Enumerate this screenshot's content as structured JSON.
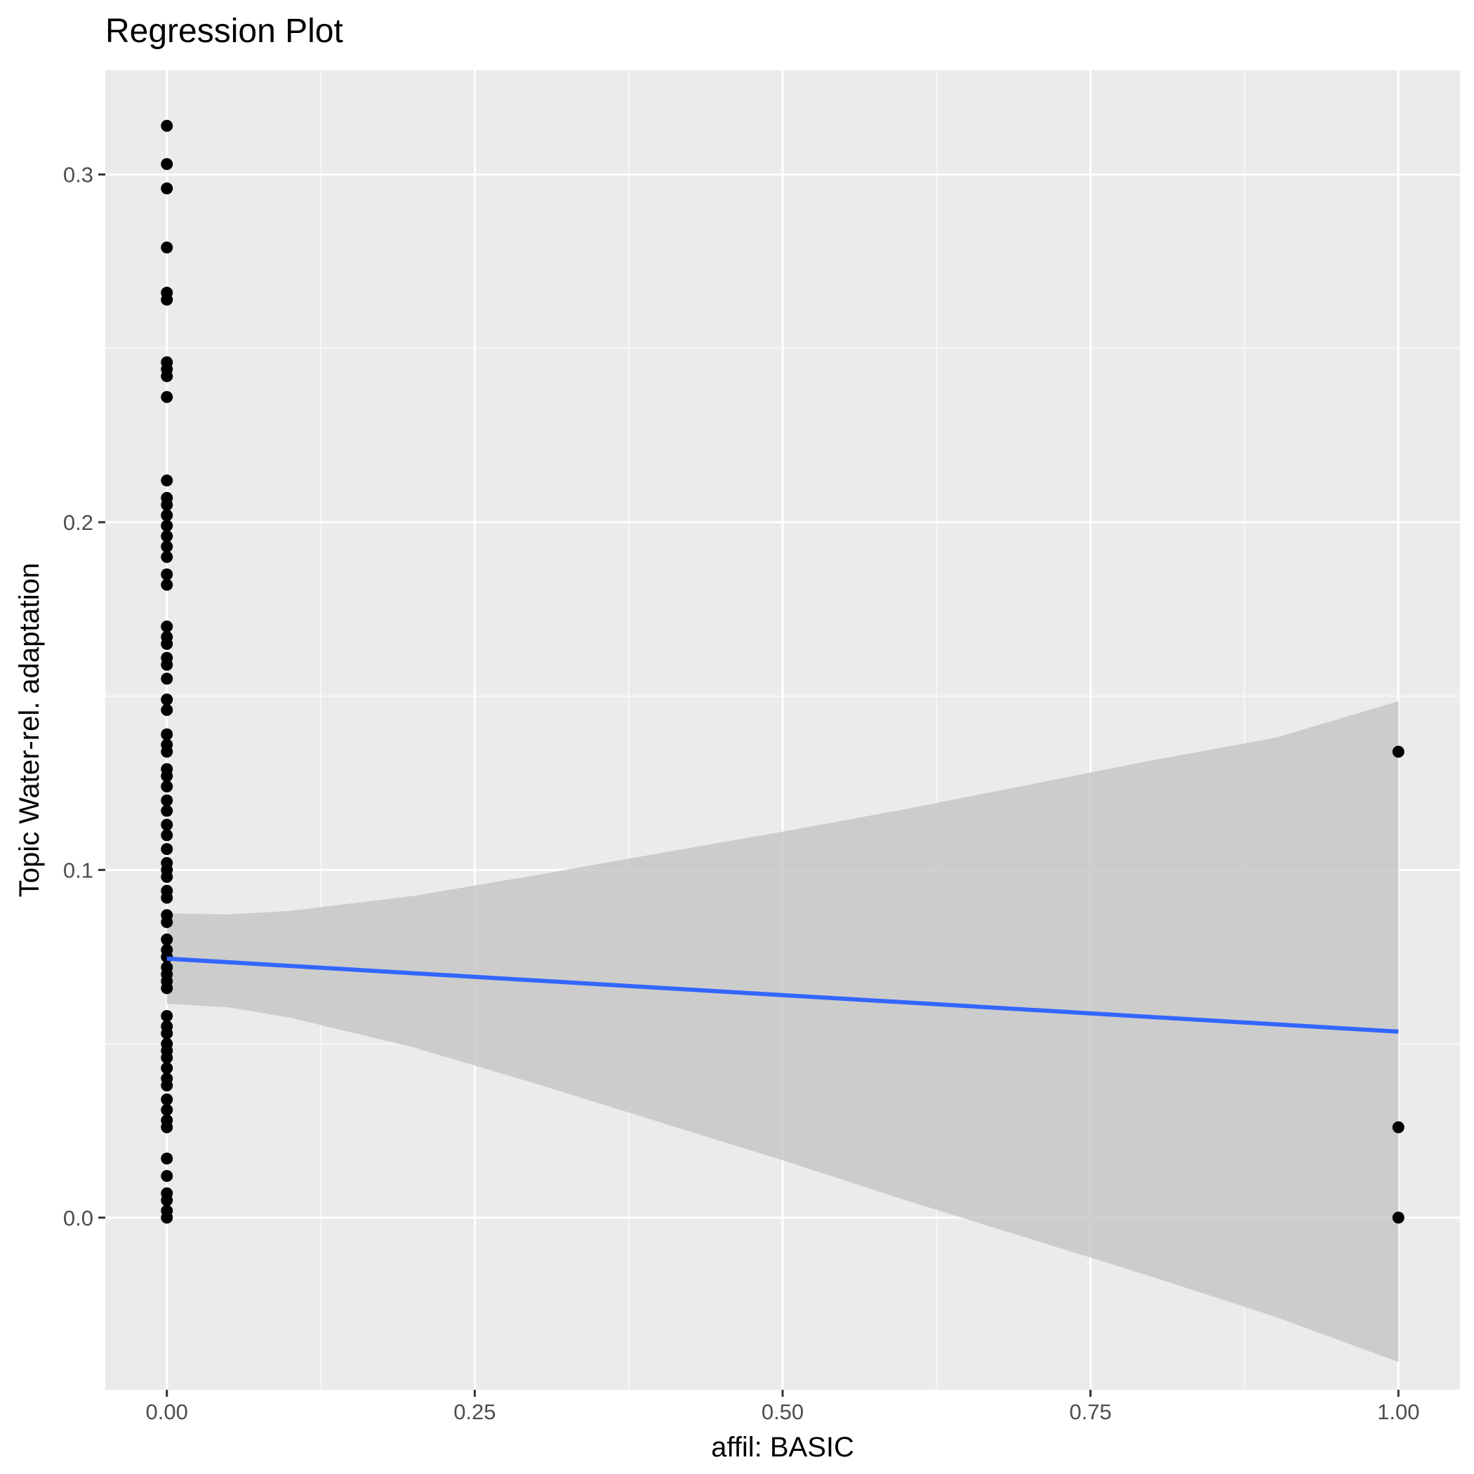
{
  "chart_data": {
    "type": "scatter",
    "title": "Regression Plot",
    "xlabel": "affil: BASIC",
    "ylabel": "Topic Water-rel. adaptation",
    "xlim": [
      -0.05,
      1.05
    ],
    "ylim": [
      -0.0495,
      0.33
    ],
    "x_ticks": [
      {
        "value": 0.0,
        "label": "0.00"
      },
      {
        "value": 0.25,
        "label": "0.25"
      },
      {
        "value": 0.5,
        "label": "0.50"
      },
      {
        "value": 0.75,
        "label": "0.75"
      },
      {
        "value": 1.0,
        "label": "1.00"
      }
    ],
    "y_ticks": [
      {
        "value": 0.0,
        "label": "0.0"
      },
      {
        "value": 0.1,
        "label": "0.1"
      },
      {
        "value": 0.2,
        "label": "0.2"
      },
      {
        "value": 0.3,
        "label": "0.3"
      }
    ],
    "grid": true,
    "points": [
      {
        "x": 0,
        "y": 0.314
      },
      {
        "x": 0,
        "y": 0.303
      },
      {
        "x": 0,
        "y": 0.296
      },
      {
        "x": 0,
        "y": 0.279
      },
      {
        "x": 0,
        "y": 0.266
      },
      {
        "x": 0,
        "y": 0.264
      },
      {
        "x": 0,
        "y": 0.246
      },
      {
        "x": 0,
        "y": 0.244
      },
      {
        "x": 0,
        "y": 0.242
      },
      {
        "x": 0,
        "y": 0.236
      },
      {
        "x": 0,
        "y": 0.212
      },
      {
        "x": 0,
        "y": 0.207
      },
      {
        "x": 0,
        "y": 0.205
      },
      {
        "x": 0,
        "y": 0.202
      },
      {
        "x": 0,
        "y": 0.199
      },
      {
        "x": 0,
        "y": 0.196
      },
      {
        "x": 0,
        "y": 0.193
      },
      {
        "x": 0,
        "y": 0.19
      },
      {
        "x": 0,
        "y": 0.185
      },
      {
        "x": 0,
        "y": 0.182
      },
      {
        "x": 0,
        "y": 0.17
      },
      {
        "x": 0,
        "y": 0.167
      },
      {
        "x": 0,
        "y": 0.165
      },
      {
        "x": 0,
        "y": 0.161
      },
      {
        "x": 0,
        "y": 0.159
      },
      {
        "x": 0,
        "y": 0.155
      },
      {
        "x": 0,
        "y": 0.149
      },
      {
        "x": 0,
        "y": 0.146
      },
      {
        "x": 0,
        "y": 0.139
      },
      {
        "x": 0,
        "y": 0.136
      },
      {
        "x": 0,
        "y": 0.134
      },
      {
        "x": 0,
        "y": 0.129
      },
      {
        "x": 0,
        "y": 0.127
      },
      {
        "x": 0,
        "y": 0.124
      },
      {
        "x": 0,
        "y": 0.12
      },
      {
        "x": 0,
        "y": 0.117
      },
      {
        "x": 0,
        "y": 0.113
      },
      {
        "x": 0,
        "y": 0.11
      },
      {
        "x": 0,
        "y": 0.106
      },
      {
        "x": 0,
        "y": 0.102
      },
      {
        "x": 0,
        "y": 0.1
      },
      {
        "x": 0,
        "y": 0.098
      },
      {
        "x": 0,
        "y": 0.094
      },
      {
        "x": 0,
        "y": 0.092
      },
      {
        "x": 0,
        "y": 0.087
      },
      {
        "x": 0,
        "y": 0.085
      },
      {
        "x": 0,
        "y": 0.08
      },
      {
        "x": 0,
        "y": 0.077
      },
      {
        "x": 0,
        "y": 0.075
      },
      {
        "x": 0,
        "y": 0.072
      },
      {
        "x": 0,
        "y": 0.07
      },
      {
        "x": 0,
        "y": 0.068
      },
      {
        "x": 0,
        "y": 0.066
      },
      {
        "x": 0,
        "y": 0.058
      },
      {
        "x": 0,
        "y": 0.055
      },
      {
        "x": 0,
        "y": 0.053
      },
      {
        "x": 0,
        "y": 0.05
      },
      {
        "x": 0,
        "y": 0.048
      },
      {
        "x": 0,
        "y": 0.046
      },
      {
        "x": 0,
        "y": 0.043
      },
      {
        "x": 0,
        "y": 0.04
      },
      {
        "x": 0,
        "y": 0.038
      },
      {
        "x": 0,
        "y": 0.034
      },
      {
        "x": 0,
        "y": 0.031
      },
      {
        "x": 0,
        "y": 0.028
      },
      {
        "x": 0,
        "y": 0.026
      },
      {
        "x": 0,
        "y": 0.017
      },
      {
        "x": 0,
        "y": 0.012
      },
      {
        "x": 0,
        "y": 0.007
      },
      {
        "x": 0,
        "y": 0.005
      },
      {
        "x": 0,
        "y": 0.002
      },
      {
        "x": 0,
        "y": 0.0
      },
      {
        "x": 1,
        "y": 0.134
      },
      {
        "x": 1,
        "y": 0.026
      },
      {
        "x": 1,
        "y": 0.0
      }
    ],
    "fit_line": [
      {
        "x": 0,
        "y": 0.0745
      },
      {
        "x": 1,
        "y": 0.0535
      }
    ],
    "confidence_band": [
      {
        "x": 0.0,
        "lower": 0.0615,
        "upper": 0.0875
      },
      {
        "x": 0.05,
        "lower": 0.0605,
        "upper": 0.0872
      },
      {
        "x": 0.1,
        "lower": 0.0575,
        "upper": 0.0882
      },
      {
        "x": 0.2,
        "lower": 0.049,
        "upper": 0.0925
      },
      {
        "x": 0.3,
        "lower": 0.0385,
        "upper": 0.0985
      },
      {
        "x": 0.4,
        "lower": 0.0275,
        "upper": 0.1048
      },
      {
        "x": 0.5,
        "lower": 0.0165,
        "upper": 0.111
      },
      {
        "x": 0.6,
        "lower": 0.005,
        "upper": 0.1175
      },
      {
        "x": 0.7,
        "lower": -0.006,
        "upper": 0.1245
      },
      {
        "x": 0.8,
        "lower": -0.017,
        "upper": 0.1315
      },
      {
        "x": 0.9,
        "lower": -0.0285,
        "upper": 0.138
      },
      {
        "x": 1.0,
        "lower": -0.0415,
        "upper": 0.1485
      }
    ],
    "colors": {
      "panel": "#ebebeb",
      "grid_major": "#ffffff",
      "grid_minor": "#f7f7f7",
      "points": "#000000",
      "fit_line": "#3366ff",
      "band": "#c4c4c4",
      "ticks": "#333333"
    }
  }
}
